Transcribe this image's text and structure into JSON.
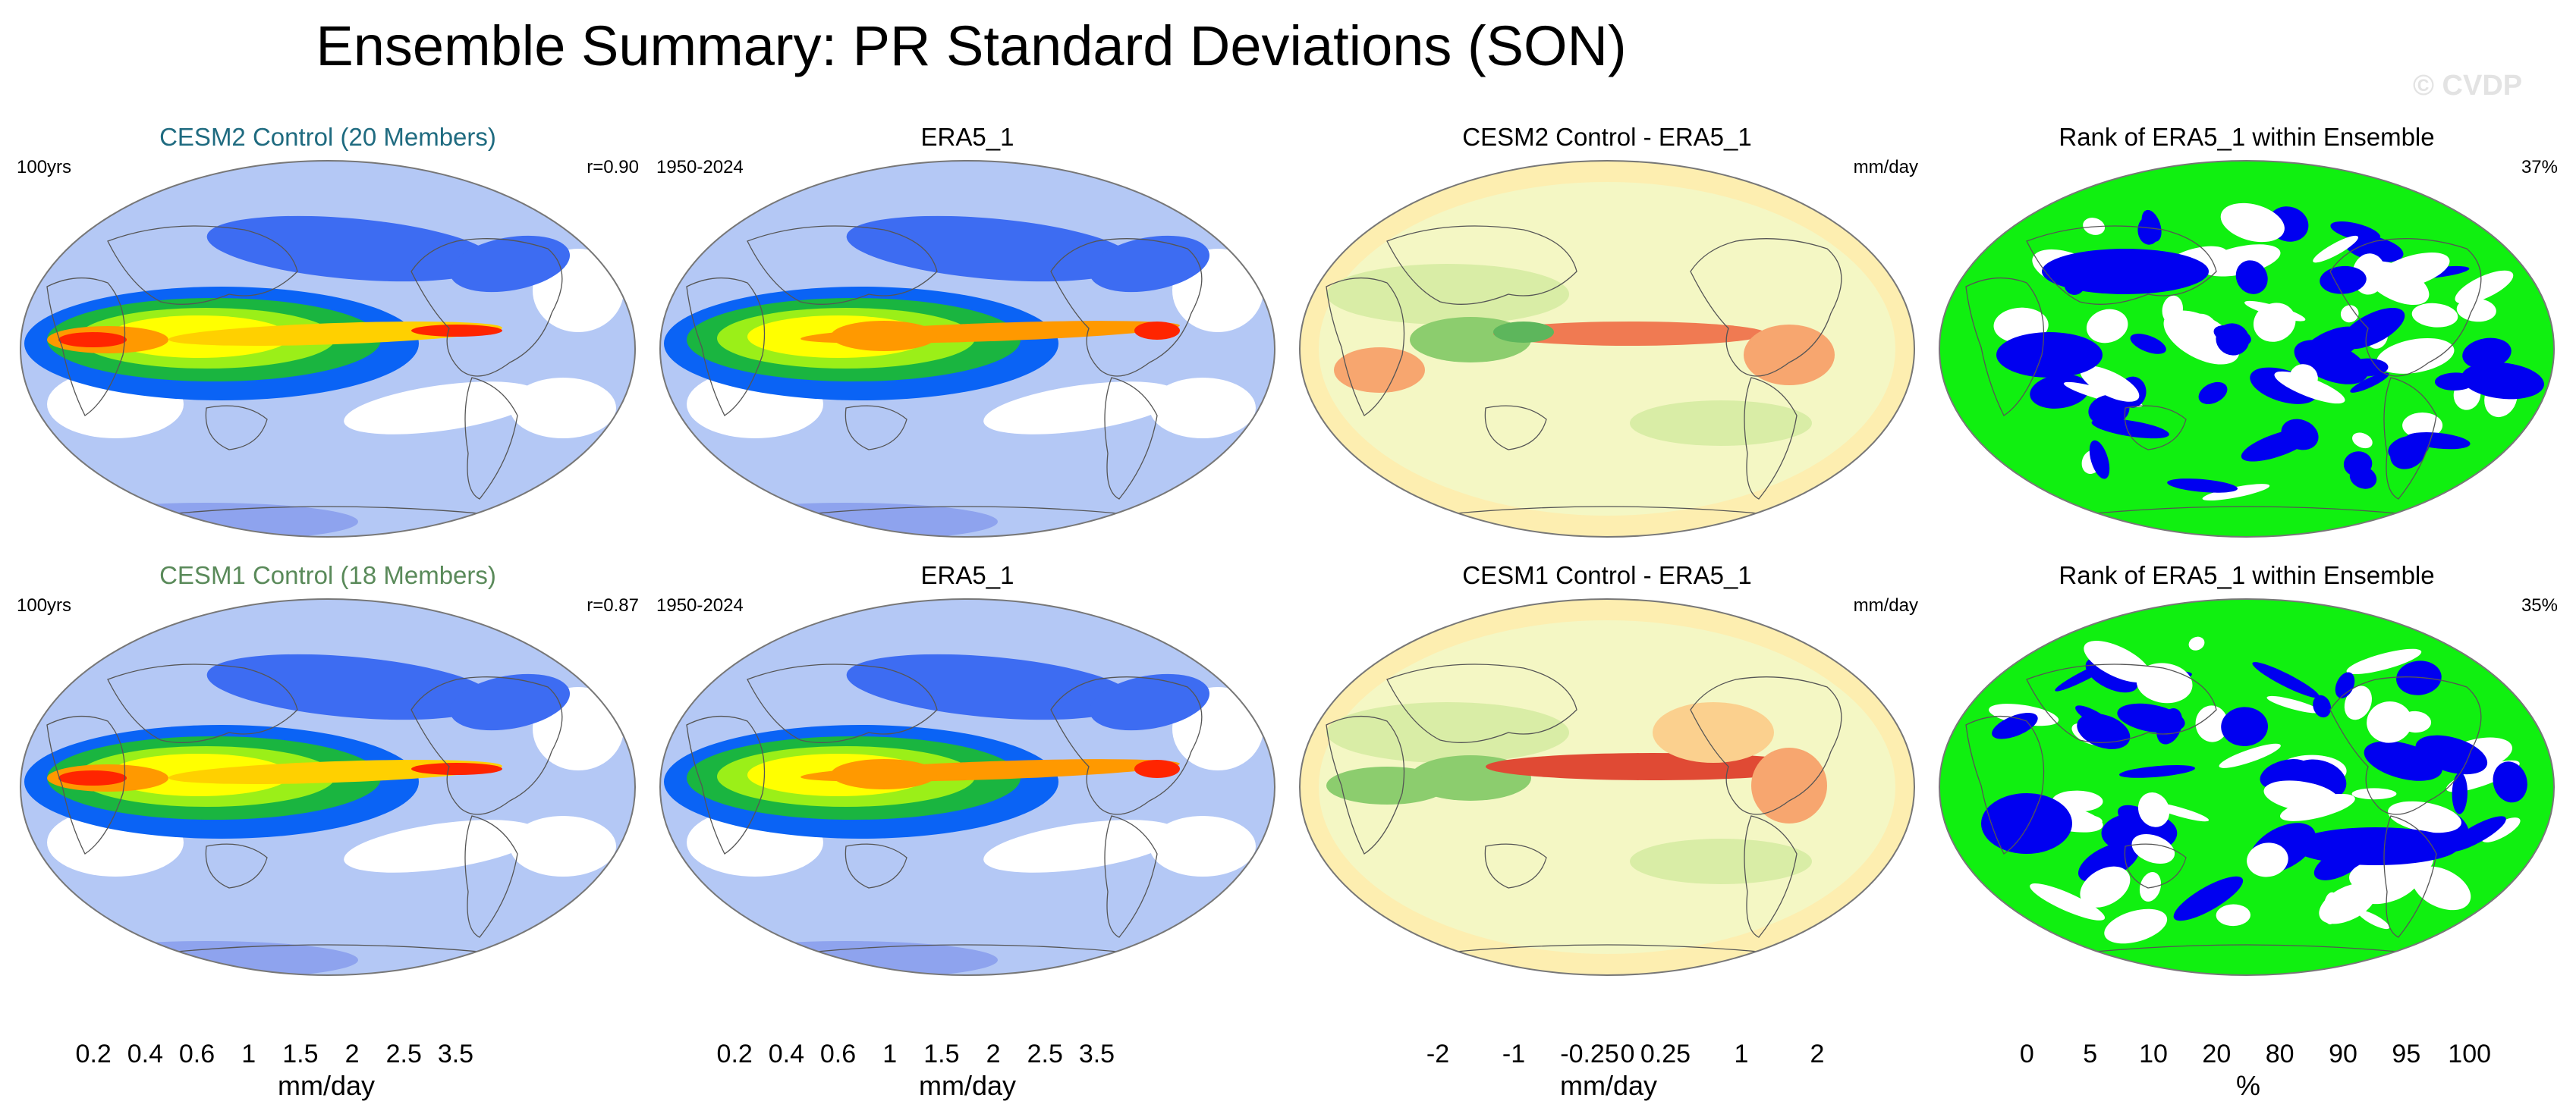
{
  "header": {
    "title": "Ensemble Summary: PR Standard Deviations (SON)",
    "watermark": "© CVDP"
  },
  "colors": {
    "cesm2_title": "#1f6b80",
    "cesm1_title": "#5a8a5a",
    "pr_scale": [
      "#ffffff",
      "#b4c8f5",
      "#8ea3ee",
      "#3d6cf2",
      "#0a63f5",
      "#1ab540",
      "#9bef18",
      "#ffff00",
      "#ffd000",
      "#ff9900",
      "#ff2500"
    ],
    "diff_scale": [
      "#a50f25",
      "#c72a2c",
      "#e04a34",
      "#f07a52",
      "#f7a66f",
      "#fbd08e",
      "#fdeeb0",
      "#f4f7c4",
      "#d9eda6",
      "#b5dc86",
      "#8ccd6e",
      "#5db65c",
      "#2f984c",
      "#0f7a3c",
      "#075a2c"
    ],
    "rank_scale": [
      "#0000f0",
      "#6a6af5",
      "#aaaaf6",
      "#dcdcfa",
      "#ffffff",
      "#e2fbe4",
      "#b6f4bd",
      "#86f28c",
      "#10f010"
    ]
  },
  "rows": [
    {
      "panels": [
        {
          "title": "CESM2 Control (20 Members)",
          "left_note": "100yrs",
          "right_note": "r=0.90"
        },
        {
          "title": "ERA5_1",
          "left_note": "1950-2024",
          "right_note": ""
        },
        {
          "title": "CESM2 Control - ERA5_1",
          "left_note": "",
          "right_note": "mm/day"
        },
        {
          "title": "Rank of ERA5_1 within Ensemble",
          "left_note": "",
          "right_note": "37%"
        }
      ]
    },
    {
      "panels": [
        {
          "title": "CESM1 Control (18 Members)",
          "left_note": "100yrs",
          "right_note": "r=0.87"
        },
        {
          "title": "ERA5_1",
          "left_note": "1950-2024",
          "right_note": ""
        },
        {
          "title": "CESM1 Control - ERA5_1",
          "left_note": "",
          "right_note": "mm/day"
        },
        {
          "title": "Rank of ERA5_1 within Ensemble",
          "left_note": "",
          "right_note": "35%"
        }
      ]
    }
  ],
  "chart_data": [
    {
      "type": "heatmap",
      "title": "CESM2 Control (20 Members)",
      "variable": "PR standard deviation",
      "season": "SON",
      "units": "mm/day",
      "period": "100yrs",
      "pattern_correlation": 0.9
    },
    {
      "type": "heatmap",
      "title": "ERA5_1",
      "variable": "PR standard deviation",
      "season": "SON",
      "units": "mm/day",
      "period": "1950-2024"
    },
    {
      "type": "heatmap",
      "title": "CESM2 Control - ERA5_1",
      "variable": "PR standard deviation difference",
      "units": "mm/day"
    },
    {
      "type": "heatmap",
      "title": "Rank of ERA5_1 within Ensemble",
      "units": "%",
      "global_value": "37%"
    },
    {
      "type": "heatmap",
      "title": "CESM1 Control (18 Members)",
      "variable": "PR standard deviation",
      "season": "SON",
      "units": "mm/day",
      "period": "100yrs",
      "pattern_correlation": 0.87
    },
    {
      "type": "heatmap",
      "title": "ERA5_1",
      "variable": "PR standard deviation",
      "season": "SON",
      "units": "mm/day",
      "period": "1950-2024"
    },
    {
      "type": "heatmap",
      "title": "CESM1 Control - ERA5_1",
      "variable": "PR standard deviation difference",
      "units": "mm/day"
    },
    {
      "type": "heatmap",
      "title": "Rank of ERA5_1 within Ensemble",
      "units": "%",
      "global_value": "35%"
    }
  ],
  "colorbars": [
    {
      "name": "model-std",
      "units": "mm/day",
      "ticks": [
        "0.2",
        "0.4",
        "0.6",
        "1",
        "1.5",
        "2",
        "2.5",
        "3.5"
      ],
      "levels": [
        0.2,
        0.4,
        0.6,
        1,
        1.5,
        2,
        2.5,
        3.5
      ]
    },
    {
      "name": "obs-std",
      "units": "mm/day",
      "ticks": [
        "0.2",
        "0.4",
        "0.6",
        "1",
        "1.5",
        "2",
        "2.5",
        "3.5"
      ],
      "levels": [
        0.2,
        0.4,
        0.6,
        1,
        1.5,
        2,
        2.5,
        3.5
      ]
    },
    {
      "name": "difference",
      "units": "mm/day",
      "ticks": [
        "-2",
        "-1",
        "-0.25",
        "0",
        "0.25",
        "1",
        "2"
      ]
    },
    {
      "name": "rank",
      "units": "%",
      "ticks": [
        "0",
        "5",
        "10",
        "20",
        "80",
        "90",
        "95",
        "100"
      ]
    }
  ]
}
